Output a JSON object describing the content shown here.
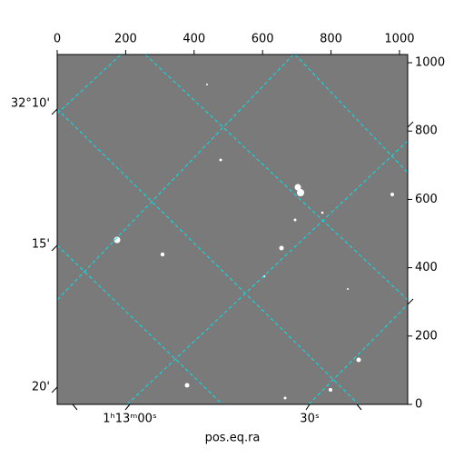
{
  "chart_data": {
    "type": "image",
    "x_label": "pos.eq.ra",
    "xlim": [
      0,
      1024
    ],
    "xticks": [
      0,
      200,
      400,
      600,
      800,
      1000
    ],
    "ylim": [
      0,
      1024
    ],
    "yticks": [
      0,
      200,
      400,
      600,
      800,
      1000
    ],
    "ra_ticks": [
      "1ʰ13ᵐ00ˢ",
      "30ˢ"
    ],
    "dec_ticks": [
      "32°10'",
      "15'",
      "20'"
    ],
    "grid": true
  }
}
